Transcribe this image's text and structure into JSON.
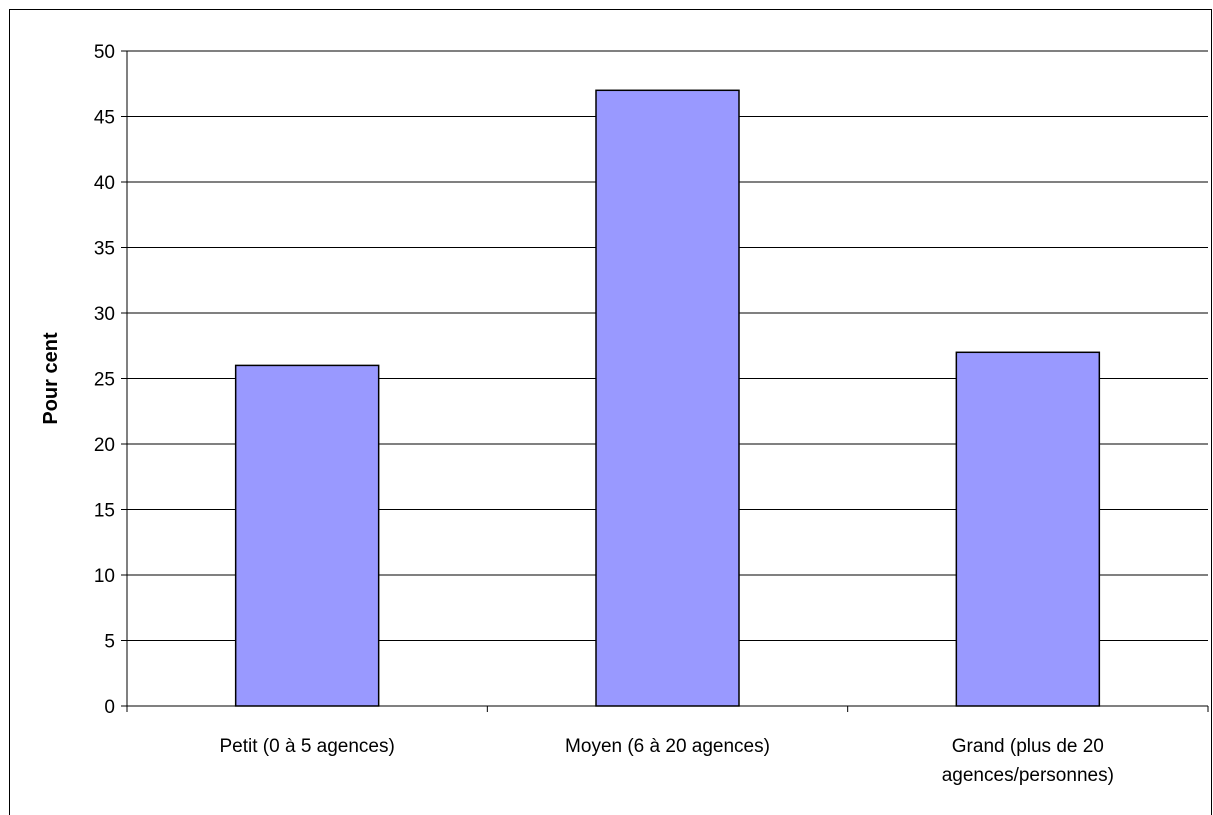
{
  "chart_data": {
    "type": "bar",
    "categories": [
      [
        "Petit (0 à 5 agences)"
      ],
      [
        "Moyen (6 à 20 agences)"
      ],
      [
        "Grand (plus de 20",
        "agences/personnes)"
      ]
    ],
    "values": [
      26,
      47,
      27
    ],
    "title": "",
    "xlabel": "",
    "ylabel": "Pour cent",
    "ylim": [
      0,
      50
    ],
    "yticks": [
      0,
      5,
      10,
      15,
      20,
      25,
      30,
      35,
      40,
      45,
      50
    ],
    "grid": true,
    "legend": "none",
    "colors": {
      "bar_fill": "#9999ff",
      "bar_stroke": "#000000",
      "grid": "#000000",
      "axis": "#000000"
    }
  }
}
